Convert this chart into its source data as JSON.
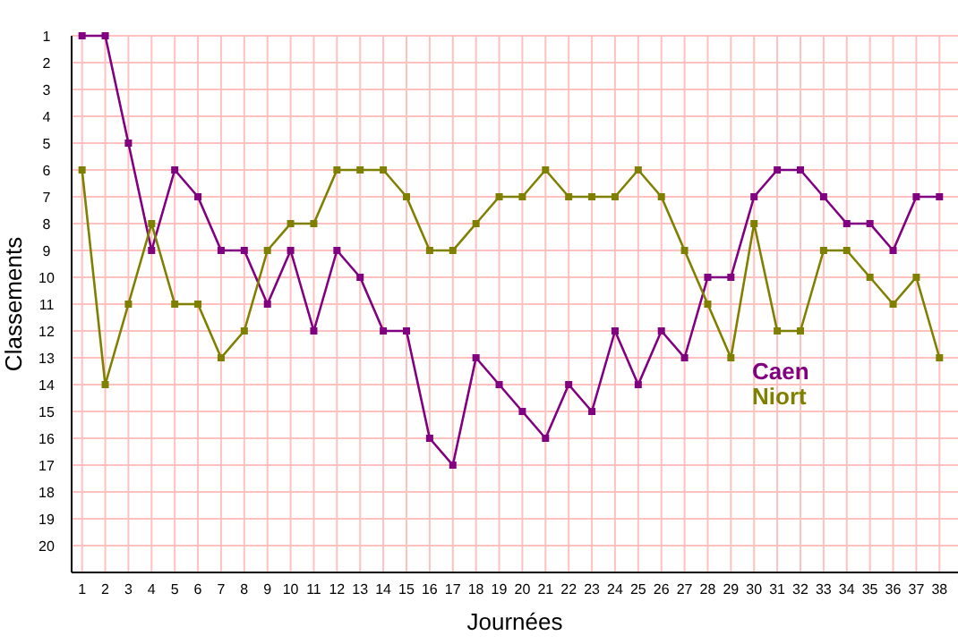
{
  "chart_data": {
    "type": "line",
    "xlabel": "Journées",
    "ylabel": "Classements",
    "x": [
      1,
      2,
      3,
      4,
      5,
      6,
      7,
      8,
      9,
      10,
      11,
      12,
      13,
      14,
      15,
      16,
      17,
      18,
      19,
      20,
      21,
      22,
      23,
      24,
      25,
      26,
      27,
      28,
      29,
      30,
      31,
      32,
      33,
      34,
      35,
      36,
      37,
      38
    ],
    "xlim": [
      0.55,
      38.8
    ],
    "xticks": [
      1,
      2,
      3,
      4,
      5,
      6,
      7,
      8,
      9,
      10,
      11,
      12,
      13,
      14,
      15,
      16,
      17,
      18,
      19,
      20,
      21,
      22,
      23,
      24,
      25,
      26,
      27,
      28,
      29,
      30,
      31,
      32,
      33,
      34,
      35,
      36,
      37,
      38
    ],
    "ylim": [
      21,
      1
    ],
    "yticks": [
      1,
      2,
      3,
      4,
      5,
      6,
      7,
      8,
      9,
      10,
      11,
      12,
      13,
      14,
      15,
      16,
      17,
      18,
      19,
      20
    ],
    "grid": true,
    "marker": "square",
    "legend": "right",
    "series": [
      {
        "name": "Caen",
        "color": "#800080",
        "values": [
          1,
          1,
          5,
          9,
          6,
          7,
          9,
          9,
          11,
          9,
          12,
          9,
          10,
          12,
          12,
          16,
          17,
          13,
          14,
          15,
          16,
          14,
          15,
          12,
          14,
          12,
          13,
          10,
          10,
          7,
          6,
          6,
          7,
          8,
          8,
          9,
          7,
          7
        ]
      },
      {
        "name": "Niort",
        "color": "#808000",
        "values": [
          6,
          14,
          11,
          8,
          11,
          11,
          13,
          12,
          9,
          8,
          8,
          6,
          6,
          6,
          7,
          9,
          9,
          8,
          7,
          7,
          6,
          7,
          7,
          7,
          6,
          7,
          9,
          11,
          13,
          8,
          12,
          12,
          9,
          9,
          10,
          11,
          10,
          13
        ]
      }
    ]
  }
}
